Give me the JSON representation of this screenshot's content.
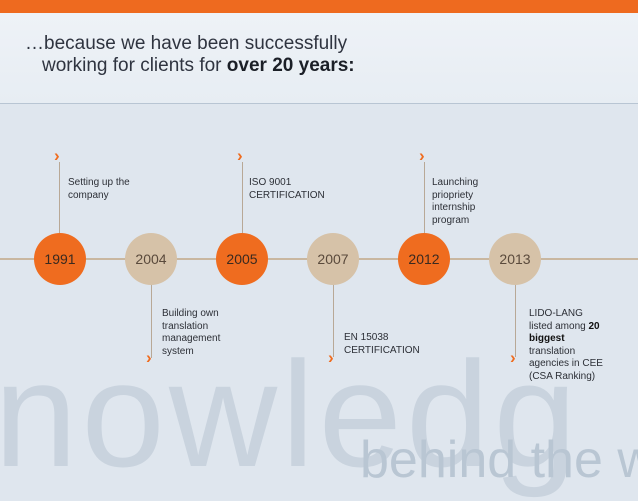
{
  "title": {
    "line1": "…because we have been successfully",
    "line2_prefix": "working for clients for ",
    "line2_bold": "over 20 years:"
  },
  "timeline": [
    {
      "year": "1991",
      "style": "orange",
      "label": "Setting up the company"
    },
    {
      "year": "2004",
      "style": "beige",
      "label": "Building own translation management system"
    },
    {
      "year": "2005",
      "style": "orange",
      "label": "ISO 9001 CERTIFICATION"
    },
    {
      "year": "2007",
      "style": "beige",
      "label": "EN 15038 CERTIFICATION"
    },
    {
      "year": "2012",
      "style": "orange",
      "label": "Launching priopriety internship program"
    },
    {
      "year": "2013",
      "style": "beige",
      "label_pre": "LIDO-LANG listed among",
      "label_bold": "20 biggest",
      "label_post": "translation agencies in CEE (CSA Ranking)"
    }
  ],
  "background_text": {
    "word1": "nowledg",
    "word2": "behind the w"
  },
  "colors": {
    "accent": "#ef6c1f",
    "beige": "#d6c2a8",
    "bar": "#ee6a1f"
  }
}
